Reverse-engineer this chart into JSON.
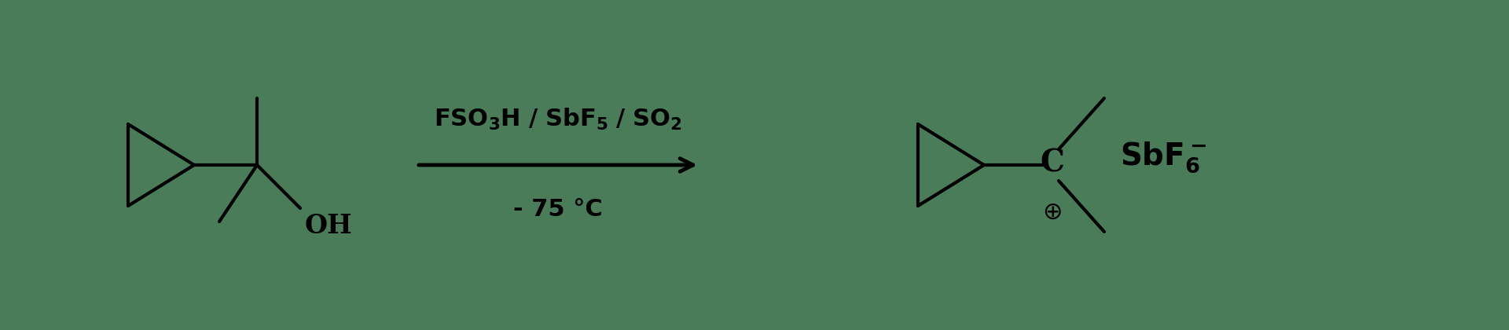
{
  "bg_color": "#4a7c59",
  "line_color": "#000000",
  "lw": 3.0,
  "arrow_lw": 3.5,
  "fig_width": 19.2,
  "fig_height": 4.2,
  "dpi": 100,
  "font_main": 24,
  "font_sub": 16,
  "font_reagent": 22,
  "font_cond": 22,
  "cond_text": "- 75 °C"
}
